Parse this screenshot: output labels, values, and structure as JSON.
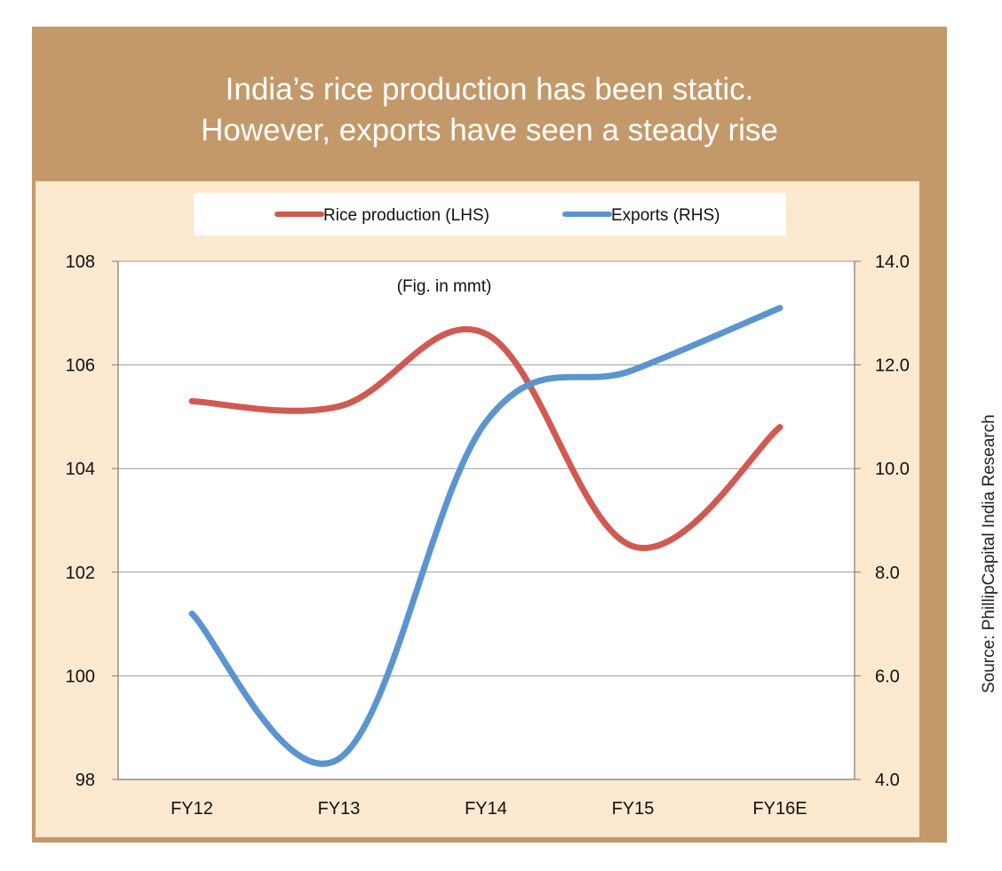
{
  "title_line1": "India’s rice production has been static.",
  "title_line2": "However, exports have seen a steady rise",
  "source": "Source: PhillipCapital India Research",
  "colors": {
    "header": "#c4996a",
    "panel": "#fde8d0",
    "production": "#d05a52",
    "exports": "#5b95d0",
    "grid": "#9a9a9a"
  },
  "chart_data": {
    "type": "line",
    "annotation": "(Fig. in mmt)",
    "categories": [
      "FY12",
      "FY13",
      "FY14",
      "FY15",
      "FY16E"
    ],
    "legend_position": "top",
    "grid": true,
    "y_left": {
      "ylim": [
        98,
        108
      ],
      "ticks": [
        "98",
        "100",
        "102",
        "104",
        "106",
        "108"
      ]
    },
    "y_right": {
      "ylim": [
        4.0,
        14.0
      ],
      "ticks": [
        "4.0",
        "6.0",
        "8.0",
        "10.0",
        "12.0",
        "14.0"
      ]
    },
    "series": [
      {
        "name": "Rice production (LHS)",
        "axis": "left",
        "color": "#d05a52",
        "values": [
          105.3,
          105.2,
          106.6,
          102.5,
          104.8
        ]
      },
      {
        "name": "Exports (RHS)",
        "axis": "right",
        "color": "#5b95d0",
        "values": [
          7.2,
          4.4,
          10.9,
          11.9,
          13.1
        ]
      }
    ]
  }
}
